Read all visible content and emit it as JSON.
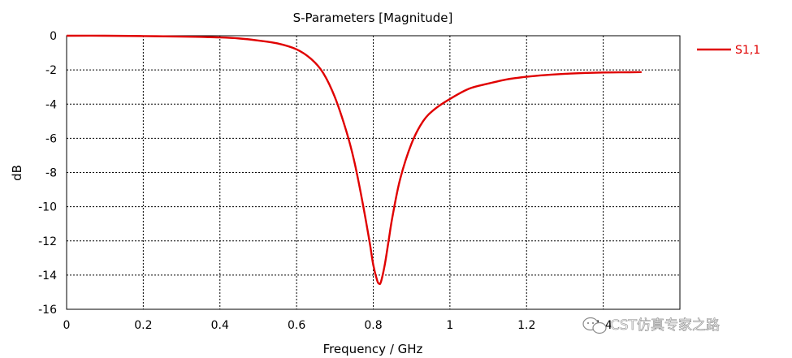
{
  "chart_data": {
    "type": "line",
    "title": "S-Parameters [Magnitude]",
    "xlabel": "Frequency / GHz",
    "ylabel": "dB",
    "xlim": [
      0,
      1.6
    ],
    "ylim": [
      -16,
      0
    ],
    "xticks": [
      0,
      0.2,
      0.4,
      0.6,
      0.8,
      1,
      1.2,
      1.4
    ],
    "xtick_labels": [
      "0",
      "0.2",
      "0.4",
      "0.6",
      "0.8",
      "1",
      "1.2",
      "1.4"
    ],
    "yticks": [
      0,
      -2,
      -4,
      -6,
      -8,
      -10,
      -12,
      -14,
      -16
    ],
    "ytick_labels": [
      "0",
      "-2",
      "-4",
      "-6",
      "-8",
      "-10",
      "-12",
      "-14",
      "-16"
    ],
    "grid": true,
    "legend": "right",
    "series": [
      {
        "name": "S1,1",
        "color": "#e00000",
        "x": [
          0,
          0.1,
          0.2,
          0.3,
          0.35,
          0.4,
          0.45,
          0.5,
          0.55,
          0.6,
          0.64,
          0.67,
          0.7,
          0.73,
          0.75,
          0.77,
          0.79,
          0.8,
          0.81,
          0.815,
          0.82,
          0.83,
          0.84,
          0.85,
          0.87,
          0.9,
          0.93,
          0.96,
          1.0,
          1.05,
          1.1,
          1.15,
          1.2,
          1.25,
          1.3,
          1.35,
          1.4,
          1.45,
          1.5
        ],
        "y": [
          0,
          0,
          -0.02,
          -0.05,
          -0.07,
          -0.1,
          -0.16,
          -0.28,
          -0.45,
          -0.8,
          -1.4,
          -2.2,
          -3.6,
          -5.6,
          -7.3,
          -9.5,
          -12.0,
          -13.4,
          -14.3,
          -14.5,
          -14.4,
          -13.4,
          -12.0,
          -10.6,
          -8.4,
          -6.3,
          -5.0,
          -4.3,
          -3.7,
          -3.1,
          -2.8,
          -2.55,
          -2.4,
          -2.3,
          -2.23,
          -2.18,
          -2.15,
          -2.14,
          -2.13
        ]
      }
    ]
  },
  "watermark": {
    "text": "CST仿真专家之路",
    "icon": "wechat-icon"
  }
}
